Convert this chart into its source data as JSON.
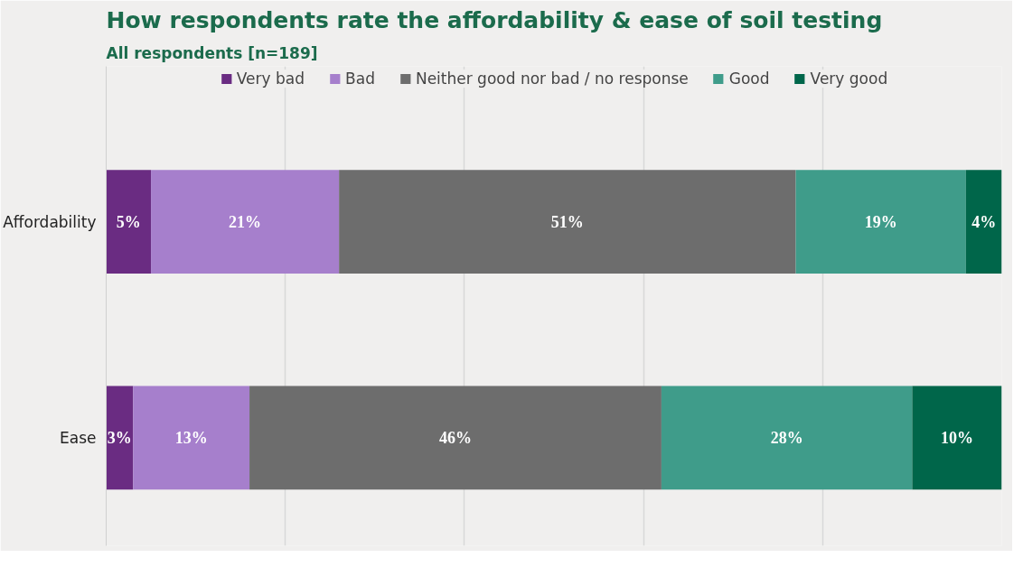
{
  "chart_data": {
    "type": "bar",
    "orientation": "horizontal",
    "stacked": true,
    "title": "How respondents rate the affordability & ease of soil testing",
    "subtitle": "All respondents [n=189]",
    "categories": [
      "Affordability",
      "Ease"
    ],
    "series": [
      {
        "name": "Very bad",
        "color": "#6a2c82",
        "values": [
          5,
          3
        ],
        "value_labels": [
          "5%",
          "3%"
        ]
      },
      {
        "name": "Bad",
        "color": "#a67fcc",
        "values": [
          21,
          13
        ],
        "value_labels": [
          "21%",
          "13%"
        ]
      },
      {
        "name": "Neither good nor bad / no response",
        "color": "#6d6d6d",
        "values": [
          51,
          46
        ],
        "value_labels": [
          "51%",
          "46%"
        ]
      },
      {
        "name": "Good",
        "color": "#3f9c8a",
        "values": [
          19,
          28
        ],
        "value_labels": [
          "19%",
          "28%"
        ]
      },
      {
        "name": "Very good",
        "color": "#00664a",
        "values": [
          4,
          10
        ],
        "value_labels": [
          "4%",
          "10%"
        ]
      }
    ],
    "xlim": [
      0,
      100
    ],
    "xticks": [
      {
        "value": 0,
        "label": null
      },
      {
        "value": 20,
        "label": null
      },
      {
        "value": 40,
        "label": null
      },
      {
        "value": 60,
        "label": null
      },
      {
        "value": 80,
        "label": null
      },
      {
        "value": 100,
        "label": null
      }
    ],
    "grid": "x",
    "legend": "top",
    "tick_labels": "y"
  }
}
